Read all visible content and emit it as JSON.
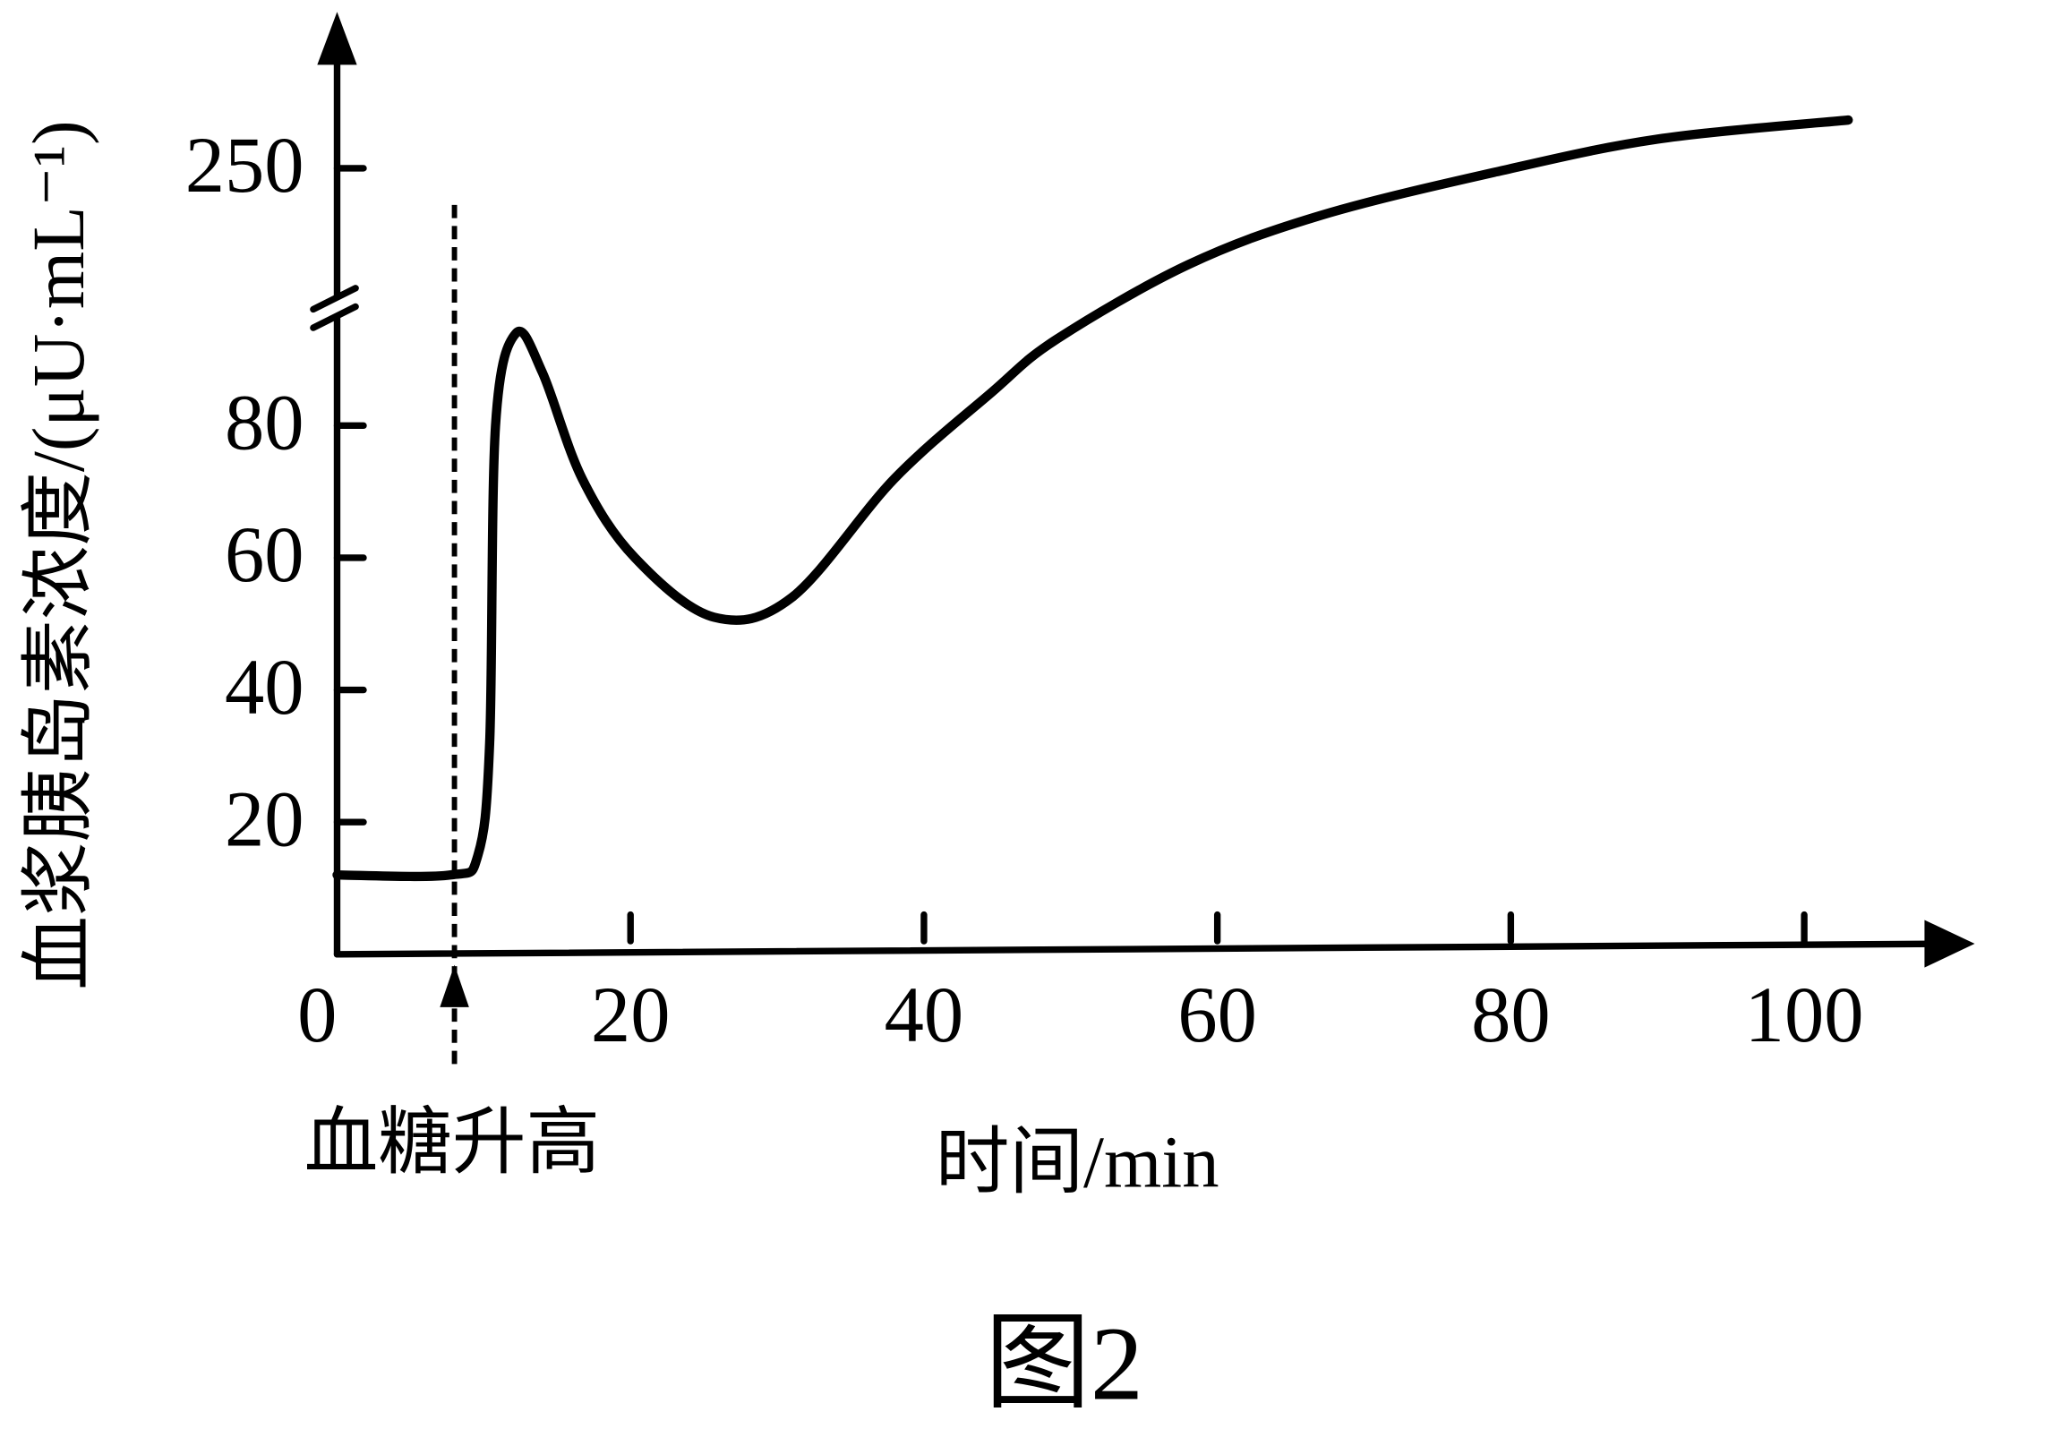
{
  "chart_data": {
    "type": "line",
    "title": "图2",
    "y_label": "血浆胰岛素浓度/(μU·mL⁻¹)",
    "x_label": "时间/min",
    "annotation": {
      "text": "血糖升高",
      "x": 8
    },
    "x": [
      0,
      7.7,
      9.6,
      10.4,
      10.8,
      12.2,
      14,
      16.7,
      20.3,
      25.7,
      31,
      38,
      44.6,
      49,
      58,
      67,
      79,
      90,
      103
    ],
    "series": [
      {
        "color": "#000000",
        "values": [
          12,
          12,
          15,
          32,
          80,
          94,
          88,
          72,
          60,
          51,
          54,
          72,
          85,
          93,
          144,
          198,
          246,
          282,
          303
        ]
      }
    ],
    "xlim": [
      0,
      110
    ],
    "xticks": [
      0,
      20,
      40,
      60,
      80,
      100
    ],
    "ylim": [
      0,
      400
    ],
    "yticks": [
      20,
      40,
      60,
      80,
      250
    ],
    "ybreak": 98
  }
}
